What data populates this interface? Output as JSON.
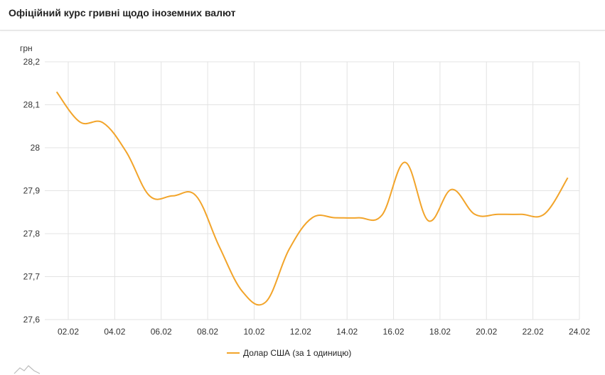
{
  "header": {
    "title": "Офіційний курс гривні щодо іноземних валют"
  },
  "chart_data": {
    "type": "line",
    "title": "",
    "ylabel": "грн",
    "ylim": [
      27.6,
      28.2
    ],
    "yticks": [
      "27,6",
      "27,7",
      "27,8",
      "27,9",
      "28",
      "28,1",
      "28,2"
    ],
    "ytick_values": [
      27.6,
      27.7,
      27.8,
      27.9,
      28.0,
      28.1,
      28.2
    ],
    "xticks": [
      "02.02",
      "04.02",
      "06.02",
      "08.02",
      "10.02",
      "12.02",
      "14.02",
      "16.02",
      "18.02",
      "20.02",
      "22.02",
      "24.02"
    ],
    "grid": true,
    "legend_position": "bottom",
    "color": "#f2a42a",
    "series": [
      {
        "name": "Долар США (за 1 одиницю)",
        "x": [
          "01.02",
          "02.02",
          "03.02",
          "04.02",
          "05.02",
          "06.02",
          "07.02",
          "08.02",
          "09.02",
          "10.02",
          "11.02",
          "12.02",
          "13.02",
          "14.02",
          "15.02",
          "16.02",
          "17.02",
          "18.02",
          "19.02",
          "20.02",
          "21.02",
          "22.02",
          "23.02"
        ],
        "values": [
          28.13,
          28.06,
          28.058,
          27.99,
          27.888,
          27.888,
          27.888,
          27.77,
          27.665,
          27.641,
          27.763,
          27.837,
          27.837,
          27.837,
          27.843,
          27.966,
          27.83,
          27.903,
          27.845,
          27.845,
          27.845,
          27.846,
          27.93
        ]
      }
    ]
  }
}
